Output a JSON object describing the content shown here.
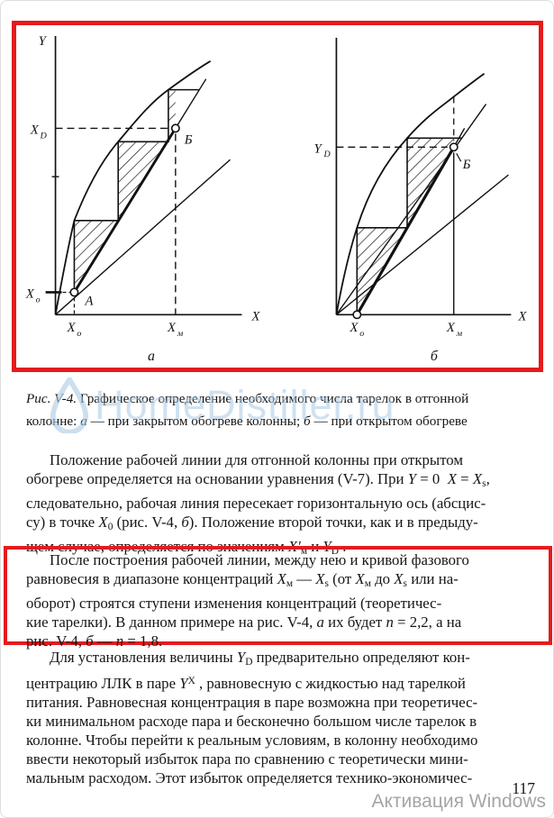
{
  "page": {
    "number": "117"
  },
  "watermarks": {
    "site": "HomeDistiller.ru",
    "windows": "Активация Windows"
  },
  "figure": {
    "a": {
      "axis_y": "Y",
      "axis_x": "X",
      "xd_base": "X",
      "xd_sub": "D",
      "xo_left_base": "X",
      "xo_left_sub": "o",
      "point_a": "А",
      "point_b": "Б",
      "xo_base": "X",
      "xo_sub": "o",
      "xm_base": "X",
      "xm_sub": "м",
      "panel_label": "а"
    },
    "b": {
      "axis_x": "X",
      "yd_base": "Y",
      "yd_sub": "D",
      "point_b": "Б",
      "xo_base": "X",
      "xo_sub": "o",
      "xm_base": "X",
      "xm_sub": "м",
      "panel_label": "б"
    }
  },
  "caption": [
    {
      "t": "Рис. V-4.",
      "i": 1
    },
    {
      "t": " Графическое определение необходимого числа тарелок в отгонной\nколонне: "
    },
    {
      "t": "а",
      "i": 1
    },
    {
      "t": " — при закрытом обогреве колонны; "
    },
    {
      "t": "б",
      "i": 1
    },
    {
      "t": " — при открытом обогреве"
    }
  ],
  "paragraphs": {
    "p1": [
      {
        "t": "Положение рабочей линии для отгонной колонны при открытом\nобогреве определяется на основании уравнения (V-7). При "
      },
      {
        "t": "Y",
        "i": 1
      },
      {
        "t": " = 0  "
      },
      {
        "t": "X",
        "i": 1
      },
      {
        "t": " = "
      },
      {
        "t": "X",
        "i": 1
      },
      {
        "t": "s",
        "sub": 1
      },
      {
        "t": ",\nследовательно, рабочая линия пересекает горизонтальную ось (абсцис-\nсу) в точке "
      },
      {
        "t": "X",
        "i": 1
      },
      {
        "t": "0",
        "sub": 1
      },
      {
        "t": " (рис. V-4, "
      },
      {
        "t": "б",
        "i": 1
      },
      {
        "t": "). Положение второй точки, как и в предыду-\nщем случае, определяется по значениям "
      },
      {
        "t": "X′",
        "i": 1
      },
      {
        "t": "м",
        "sub": 1
      },
      {
        "t": " и "
      },
      {
        "t": "Y",
        "i": 1
      },
      {
        "t": "D",
        "sub": 1
      },
      {
        "t": " ."
      }
    ],
    "p2": [
      {
        "t": "После построения рабочей линии, между нею и кривой фазового\nравновесия в диапазоне концентраций "
      },
      {
        "t": "X",
        "i": 1
      },
      {
        "t": "м",
        "sub": 1
      },
      {
        "t": " — "
      },
      {
        "t": "X",
        "i": 1
      },
      {
        "t": "s",
        "sub": 1
      },
      {
        "t": " (от "
      },
      {
        "t": "X",
        "i": 1
      },
      {
        "t": "м",
        "sub": 1
      },
      {
        "t": " до "
      },
      {
        "t": "X",
        "i": 1
      },
      {
        "t": "s",
        "sub": 1
      },
      {
        "t": " или на-\nоборот) строятся ступени изменения концентраций (теоретичес-\nкие тарелки). В данном примере на рис. V-4, "
      },
      {
        "t": "а",
        "i": 1
      },
      {
        "t": " их будет "
      },
      {
        "t": "n",
        "i": 1
      },
      {
        "t": " = 2,2, а на\nрис. V-4, "
      },
      {
        "t": "б",
        "i": 1
      },
      {
        "t": " — "
      },
      {
        "t": "n",
        "i": 1
      },
      {
        "t": " = 1,8."
      }
    ],
    "p3": [
      {
        "t": "Для установления величины "
      },
      {
        "t": "Y",
        "i": 1
      },
      {
        "t": "D",
        "sub": 1
      },
      {
        "t": " предварительно определяют кон-\nцентрацию ЛЛК в паре "
      },
      {
        "t": "Y",
        "i": 1
      },
      {
        "t": "X",
        "sup": 1
      },
      {
        "t": " , равновесную с жидкостью над тарелкой\nпитания. Равновесная концентрация в паре возможна при теоретичес-\nки минимальном расходе пара и бесконечно большом числе тарелок в\nколонне. Чтобы перейти к реальным условиям, в колонну необходимо\nввести некоторый избыток пара по сравнению с теоретически мини-\nмальным расходом. Этот избыток определяется технико-экономичес-"
      }
    ]
  }
}
